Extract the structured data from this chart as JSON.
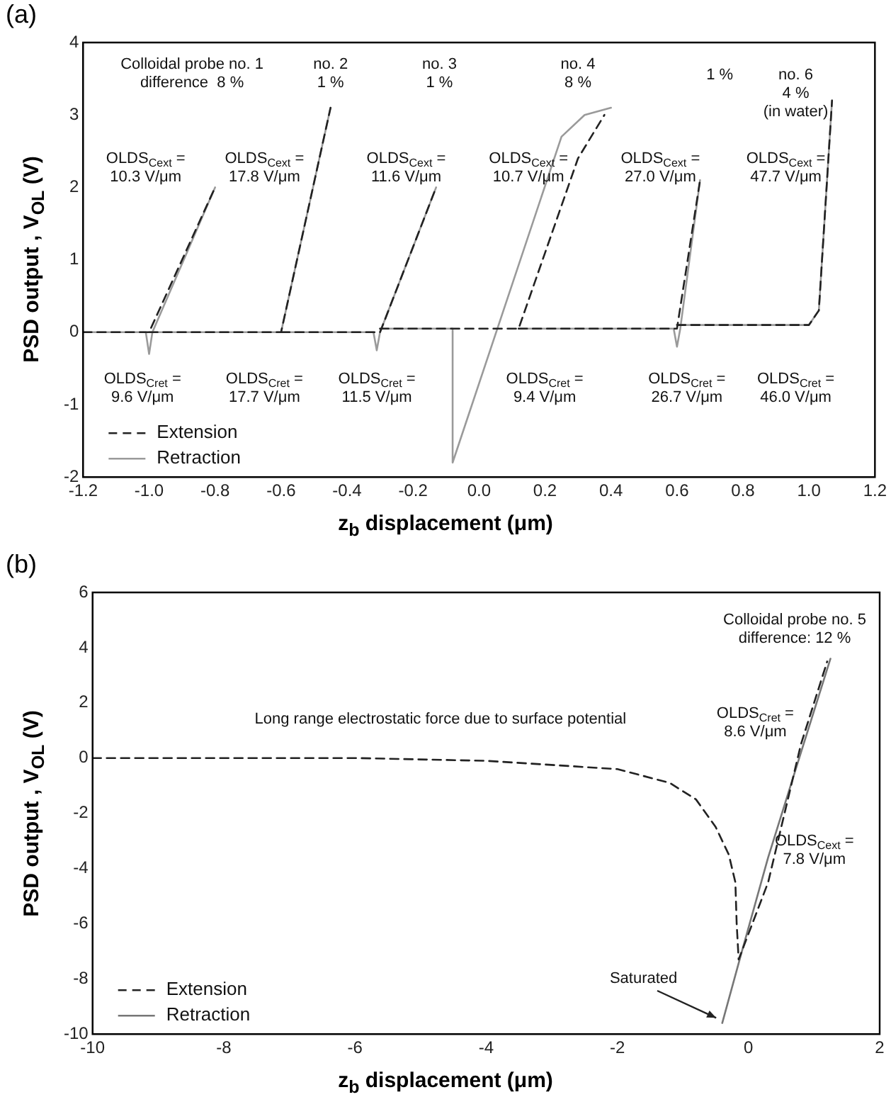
{
  "chart_data": [
    {
      "type": "line",
      "title": "(a)",
      "xlabel": "z$_{b}$ displacement (μm)",
      "ylabel": "PSD output , V$_{OL}$ (V)",
      "xlim": [
        -1.2,
        1.2
      ],
      "xticks": [
        -1.2,
        {
          "value": -1.0,
          "label": "-1.0"
        },
        -0.8,
        -0.6,
        -0.4,
        -0.2,
        {
          "value": 0,
          "label": "0.0"
        },
        0.2,
        0.4,
        0.6,
        0.8,
        {
          "value": 1.0,
          "label": "1.0"
        },
        1.2
      ],
      "ylim": [
        -2,
        4
      ],
      "yticks": [
        -2,
        -1,
        0,
        1,
        2,
        3,
        4
      ],
      "grid": false,
      "legend": "bottom left",
      "marker": "none",
      "series": [
        {
          "name": "Extension",
          "color": "#222222",
          "line_style": "dashed",
          "x": [
            -1.2,
            -1.0,
            -0.9,
            -0.8,
            null,
            -1.0,
            -0.6,
            -0.45,
            null,
            -0.6,
            -0.3,
            -0.13,
            null,
            -0.3,
            0.12,
            0.3,
            0.38,
            null,
            0.12,
            0.6,
            0.67,
            null,
            0.6,
            1.0,
            1.03,
            1.07
          ],
          "values": [
            0,
            0,
            1.0,
            2.0,
            null,
            0,
            0,
            3.1,
            null,
            0,
            0,
            2.0,
            null,
            0.05,
            0.05,
            2.4,
            3.0,
            null,
            0.05,
            0.05,
            2.1,
            null,
            0.1,
            0.1,
            0.3,
            3.2
          ]
        },
        {
          "name": "Retraction",
          "color": "#9a9a9a",
          "line_style": "solid",
          "x": [
            -1.2,
            -1.01,
            -1.0,
            -0.99,
            -0.8,
            null,
            -1.0,
            -0.6,
            -0.45,
            null,
            -0.6,
            -0.32,
            -0.31,
            -0.3,
            -0.13,
            null,
            -0.3,
            -0.08,
            -0.08,
            0.25,
            0.32,
            0.4,
            null,
            0.12,
            0.59,
            0.6,
            0.61,
            0.67,
            null,
            0.6,
            1.0,
            1.03,
            1.07
          ],
          "values": [
            0,
            0,
            -0.3,
            0,
            2.0,
            null,
            0,
            0,
            3.1,
            null,
            0,
            0,
            -0.25,
            0,
            2.0,
            null,
            0.05,
            0.05,
            -1.8,
            2.7,
            3.0,
            3.1,
            null,
            0.05,
            0.05,
            -0.2,
            0.05,
            2.1,
            null,
            0.1,
            0.1,
            0.3,
            3.2
          ]
        }
      ],
      "annotations": [
        "Colloidal probe no. 1\ndifference  8 %",
        "no. 2\n1 %",
        "no. 3\n1 %",
        "no. 4\n8 %",
        "1 %",
        "no. 6\n4 %\n(in water)",
        "OLDS$_{Cext}$ =\n10.3 V/μm",
        "OLDS$_{Cext}$ =\n17.8 V/μm",
        "OLDS$_{Cext}$ =\n11.6 V/μm",
        "OLDS$_{Cext}$ =\n10.7 V/μm",
        "OLDS$_{Cext}$ =\n27.0 V/μm",
        "OLDS$_{Cext}$ =\n47.7 V/μm",
        "OLDS$_{Cret}$ =\n9.6 V/μm",
        "OLDS$_{Cret}$ =\n17.7 V/μm",
        "OLDS$_{Cret}$ =\n11.5 V/μm",
        "OLDS$_{Cret}$ =\n9.4 V/μm",
        "OLDS$_{Cret}$ =\n26.7 V/μm",
        "OLDS$_{Cret}$ =\n46.0 V/μm"
      ]
    },
    {
      "type": "line",
      "title": "(b)",
      "xlabel": "z$_{b}$ displacement (μm)",
      "ylabel": "PSD output , V$_{OL}$ (V)",
      "xlim": [
        -10,
        2
      ],
      "xticks": [
        -10,
        -8,
        -6,
        -4,
        -2,
        0,
        2
      ],
      "ylim": [
        -10,
        6
      ],
      "yticks": [
        -10,
        -8,
        -6,
        -4,
        -2,
        0,
        2,
        4,
        6
      ],
      "grid": false,
      "legend": "bottom left",
      "marker": "none",
      "series": [
        {
          "name": "Extension",
          "color": "#222222",
          "line_style": "dashed",
          "x": [
            -10,
            -6,
            -4,
            -2,
            -1.2,
            -0.8,
            -0.5,
            -0.3,
            -0.2,
            -0.18,
            -0.15,
            0.3,
            0.8,
            1.2
          ],
          "values": [
            0,
            0,
            -0.1,
            -0.4,
            -0.9,
            -1.5,
            -2.5,
            -3.5,
            -4.5,
            -6,
            -7.3,
            -4.5,
            0.5,
            3.5
          ]
        },
        {
          "name": "Retraction",
          "color": "#777777",
          "line_style": "solid",
          "x": [
            1.25,
            0.8,
            0.3,
            -0.1,
            -0.4
          ],
          "values": [
            3.6,
            0.2,
            -3.6,
            -7.0,
            -9.6
          ]
        }
      ],
      "annotations": [
        "Colloidal probe no. 5\ndifference: 12 %",
        "Long range electrostatic force due to surface potential",
        "OLDS$_{Cret}$ =\n8.6 V/μm",
        "OLDS$_{Cext}$ =\n7.8 V/μm",
        "Saturated"
      ]
    }
  ]
}
